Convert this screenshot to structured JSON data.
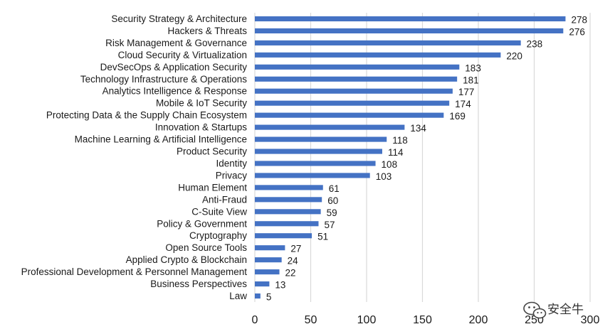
{
  "chart_data": {
    "type": "bar",
    "orientation": "horizontal",
    "categories": [
      "Security Strategy & Architecture",
      "Hackers & Threats",
      "Risk Management & Governance",
      "Cloud Security & Virtualization",
      "DevSecOps & Application Security",
      "Technology Infrastructure & Operations",
      "Analytics Intelligence & Response",
      "Mobile & IoT Security",
      "Protecting Data & the Supply Chain Ecosystem",
      "Innovation & Startups",
      "Machine Learning & Artificial Intelligence",
      "Product Security",
      "Identity",
      "Privacy",
      "Human Element",
      "Anti-Fraud",
      "C-Suite View",
      "Policy & Government",
      "Cryptography",
      "Open Source Tools",
      "Applied Crypto & Blockchain",
      "Professional Development & Personnel Management",
      "Business Perspectives",
      "Law"
    ],
    "values": [
      278,
      276,
      238,
      220,
      183,
      181,
      177,
      174,
      169,
      134,
      118,
      114,
      108,
      103,
      61,
      60,
      59,
      57,
      51,
      27,
      24,
      22,
      13,
      5
    ],
    "xlim": [
      0,
      300
    ],
    "xticks": [
      "0",
      "50",
      "100",
      "150",
      "200",
      "250",
      "300"
    ],
    "grid": "vertical",
    "legend": "none",
    "title": "",
    "xlabel": "",
    "ylabel": "",
    "bar_color": "#4472c4",
    "grid_color": "#d9d9d9"
  },
  "watermark": {
    "text": "安全牛",
    "icon": "wechat-icon"
  }
}
